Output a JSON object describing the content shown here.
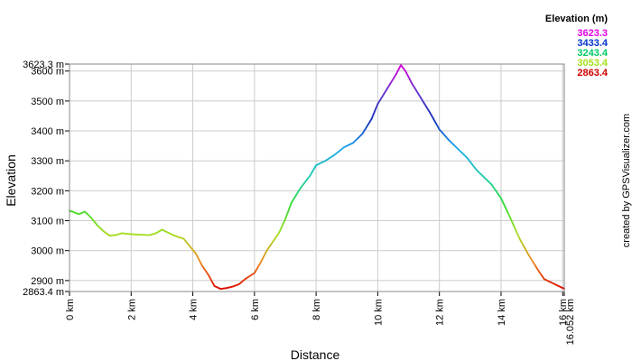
{
  "chart_data": {
    "type": "line",
    "xlabel": "Distance",
    "ylabel": "Elevation",
    "x_unit": "km",
    "y_unit": "m",
    "xlim": [
      0,
      16.052
    ],
    "ylim": [
      2863.4,
      3623.3
    ],
    "grid": true,
    "x_ticks": [
      {
        "value": 0,
        "label": "0 km"
      },
      {
        "value": 2,
        "label": "2 km"
      },
      {
        "value": 4,
        "label": "4 km"
      },
      {
        "value": 6,
        "label": "6 km"
      },
      {
        "value": 8,
        "label": "8 km"
      },
      {
        "value": 10,
        "label": "10 km"
      },
      {
        "value": 12,
        "label": "12 km"
      },
      {
        "value": 14,
        "label": "14 km"
      },
      {
        "value": 16,
        "label": "16 km"
      },
      {
        "value": 16.052,
        "label": "16.052 km"
      }
    ],
    "y_ticks": [
      {
        "value": 2863.4,
        "label": "2863.4 m"
      },
      {
        "value": 2900,
        "label": "2900 m"
      },
      {
        "value": 3000,
        "label": "3000 m"
      },
      {
        "value": 3100,
        "label": "3100 m"
      },
      {
        "value": 3200,
        "label": "3200 m"
      },
      {
        "value": 3300,
        "label": "3300 m"
      },
      {
        "value": 3400,
        "label": "3400 m"
      },
      {
        "value": 3500,
        "label": "3500 m"
      },
      {
        "value": 3600,
        "label": "3600 m"
      },
      {
        "value": 3623.3,
        "label": "3623.3 m"
      }
    ],
    "legend": {
      "title": "Elevation (m)",
      "placement": "top-right",
      "entries": [
        {
          "label": "3623.3",
          "color": "#e100e1"
        },
        {
          "label": "3433.4",
          "color": "#0033cc"
        },
        {
          "label": "3243.4",
          "color": "#00cc66"
        },
        {
          "label": "3053.4",
          "color": "#a6e01a"
        },
        {
          "label": "2863.4",
          "color": "#cc0000"
        }
      ]
    },
    "color_scale": [
      {
        "value": 2863.4,
        "color": "#dd0000"
      },
      {
        "value": 2960,
        "color": "#ee8822"
      },
      {
        "value": 3053.4,
        "color": "#aadd22"
      },
      {
        "value": 3150,
        "color": "#33dd33"
      },
      {
        "value": 3243.4,
        "color": "#22ccaa"
      },
      {
        "value": 3340,
        "color": "#22aaee"
      },
      {
        "value": 3433.4,
        "color": "#1133bb"
      },
      {
        "value": 3530,
        "color": "#6633cc"
      },
      {
        "value": 3623.3,
        "color": "#dd00dd"
      }
    ],
    "series": [
      {
        "x": [
          0,
          0.1,
          0.3,
          0.5,
          0.7,
          0.9,
          1.1,
          1.3,
          1.5,
          1.7,
          2.0,
          2.3,
          2.6,
          2.8,
          3.0,
          3.2,
          3.4,
          3.7,
          3.9,
          4.1,
          4.3,
          4.5,
          4.7,
          4.9,
          5.1,
          5.3,
          5.5,
          5.7,
          6.0,
          6.2,
          6.4,
          6.6,
          6.8,
          7.0,
          7.2,
          7.5,
          7.8,
          8.0,
          8.3,
          8.6,
          8.9,
          9.2,
          9.5,
          9.8,
          10.0,
          10.3,
          10.6,
          10.75,
          10.9,
          11.1,
          11.4,
          11.7,
          12.0,
          12.3,
          12.6,
          12.9,
          13.2,
          13.5,
          13.7,
          14.0,
          14.3,
          14.6,
          14.9,
          15.2,
          15.4,
          15.6,
          15.8,
          16.0,
          16.052
        ],
        "y": [
          3133,
          3130,
          3122,
          3130,
          3110,
          3085,
          3065,
          3050,
          3052,
          3058,
          3055,
          3053,
          3052,
          3058,
          3070,
          3060,
          3050,
          3040,
          3015,
          2990,
          2950,
          2920,
          2882,
          2872,
          2875,
          2880,
          2888,
          2905,
          2925,
          2960,
          3000,
          3030,
          3060,
          3105,
          3160,
          3210,
          3250,
          3285,
          3300,
          3320,
          3345,
          3360,
          3390,
          3440,
          3490,
          3540,
          3590,
          3620,
          3600,
          3560,
          3510,
          3460,
          3405,
          3370,
          3340,
          3310,
          3270,
          3240,
          3220,
          3175,
          3110,
          3040,
          2985,
          2935,
          2905,
          2895,
          2885,
          2875,
          2873
        ]
      }
    ],
    "annotations": [
      "created by GPSVisualizer.com"
    ]
  }
}
